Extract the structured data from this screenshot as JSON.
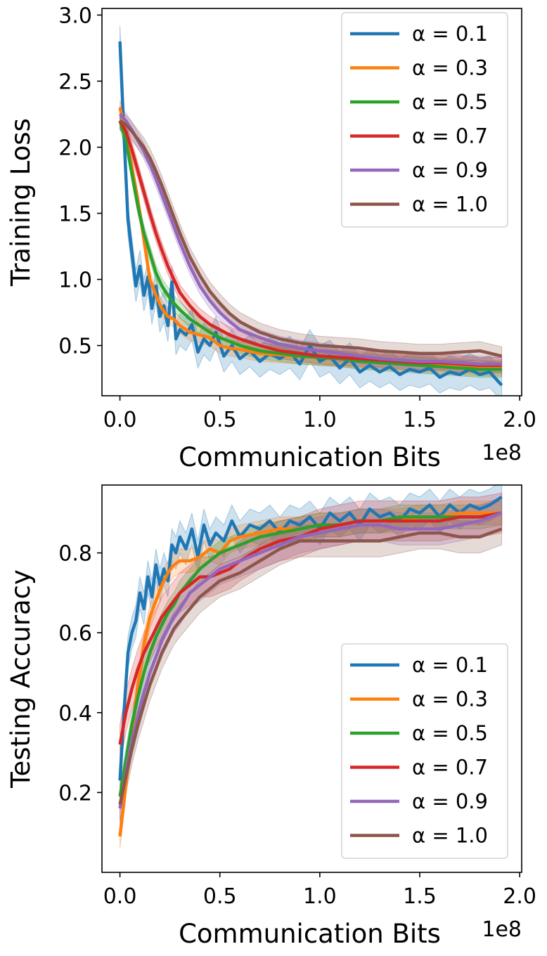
{
  "chart_data": [
    {
      "type": "line",
      "ylabel": "Training Loss",
      "xlabel": "Communication Bits",
      "x_offset_label": "1e8",
      "xlim": [
        -0.09,
        2.01
      ],
      "ylim": [
        0.12,
        3.05
      ],
      "xticks": [
        0.0,
        0.5,
        1.0,
        1.5,
        2.0
      ],
      "xtick_labels": [
        "0.0",
        "0.5",
        "1.0",
        "1.5",
        "2.0"
      ],
      "yticks": [
        0.5,
        1.0,
        1.5,
        2.0,
        2.5,
        3.0
      ],
      "ytick_labels": [
        "0.5",
        "1.0",
        "1.5",
        "2.0",
        "2.5",
        "3.0"
      ],
      "legend_position": "upper right",
      "series": [
        {
          "name": "α = 0.1",
          "color": "#1f77b4",
          "band": 0.12,
          "x": [
            0.0,
            0.02,
            0.04,
            0.06,
            0.08,
            0.1,
            0.12,
            0.14,
            0.16,
            0.18,
            0.2,
            0.22,
            0.24,
            0.26,
            0.28,
            0.3,
            0.33,
            0.36,
            0.39,
            0.42,
            0.45,
            0.48,
            0.52,
            0.56,
            0.6,
            0.65,
            0.7,
            0.75,
            0.8,
            0.85,
            0.9,
            0.95,
            1.0,
            1.05,
            1.1,
            1.15,
            1.2,
            1.25,
            1.3,
            1.35,
            1.4,
            1.45,
            1.5,
            1.55,
            1.6,
            1.65,
            1.7,
            1.75,
            1.8,
            1.85,
            1.91
          ],
          "y": [
            2.8,
            2.1,
            1.45,
            1.2,
            0.95,
            1.1,
            0.88,
            1.02,
            0.78,
            0.95,
            0.72,
            0.8,
            0.65,
            0.98,
            0.55,
            0.62,
            0.58,
            0.66,
            0.45,
            0.55,
            0.5,
            0.6,
            0.42,
            0.5,
            0.4,
            0.46,
            0.38,
            0.44,
            0.4,
            0.45,
            0.36,
            0.5,
            0.38,
            0.42,
            0.33,
            0.4,
            0.3,
            0.35,
            0.3,
            0.34,
            0.28,
            0.32,
            0.3,
            0.33,
            0.26,
            0.3,
            0.28,
            0.32,
            0.28,
            0.3,
            0.2
          ]
        },
        {
          "name": "α = 0.3",
          "color": "#ff7f0e",
          "band": 0.06,
          "x": [
            0.0,
            0.03,
            0.06,
            0.09,
            0.12,
            0.15,
            0.18,
            0.21,
            0.24,
            0.27,
            0.3,
            0.35,
            0.4,
            0.45,
            0.5,
            0.55,
            0.6,
            0.7,
            0.8,
            0.9,
            1.0,
            1.1,
            1.2,
            1.3,
            1.4,
            1.5,
            1.6,
            1.7,
            1.8,
            1.91
          ],
          "y": [
            2.3,
            2.1,
            1.85,
            1.6,
            1.3,
            1.0,
            0.88,
            0.78,
            0.72,
            0.7,
            0.65,
            0.6,
            0.58,
            0.56,
            0.5,
            0.48,
            0.47,
            0.44,
            0.43,
            0.42,
            0.41,
            0.4,
            0.39,
            0.38,
            0.37,
            0.36,
            0.35,
            0.34,
            0.33,
            0.33
          ]
        },
        {
          "name": "α = 0.5",
          "color": "#2ca02c",
          "band": 0.06,
          "x": [
            0.0,
            0.03,
            0.06,
            0.09,
            0.12,
            0.15,
            0.18,
            0.21,
            0.24,
            0.27,
            0.3,
            0.35,
            0.4,
            0.45,
            0.5,
            0.55,
            0.6,
            0.7,
            0.8,
            0.9,
            1.0,
            1.1,
            1.2,
            1.3,
            1.4,
            1.5,
            1.6,
            1.7,
            1.8,
            1.91
          ],
          "y": [
            2.2,
            2.05,
            1.8,
            1.55,
            1.35,
            1.2,
            1.05,
            0.95,
            0.88,
            0.82,
            0.77,
            0.7,
            0.65,
            0.6,
            0.56,
            0.53,
            0.5,
            0.46,
            0.44,
            0.42,
            0.41,
            0.4,
            0.38,
            0.37,
            0.36,
            0.35,
            0.34,
            0.33,
            0.32,
            0.32
          ]
        },
        {
          "name": "α = 0.7",
          "color": "#d62728",
          "band": 0.06,
          "x": [
            0.0,
            0.03,
            0.06,
            0.09,
            0.12,
            0.15,
            0.18,
            0.21,
            0.24,
            0.27,
            0.3,
            0.35,
            0.4,
            0.45,
            0.5,
            0.55,
            0.6,
            0.7,
            0.8,
            0.9,
            1.0,
            1.1,
            1.2,
            1.3,
            1.4,
            1.5,
            1.6,
            1.7,
            1.8,
            1.91
          ],
          "y": [
            2.2,
            2.12,
            1.98,
            1.82,
            1.66,
            1.5,
            1.35,
            1.22,
            1.1,
            1.0,
            0.9,
            0.8,
            0.72,
            0.66,
            0.62,
            0.58,
            0.55,
            0.5,
            0.46,
            0.44,
            0.42,
            0.41,
            0.4,
            0.39,
            0.38,
            0.37,
            0.37,
            0.36,
            0.35,
            0.35
          ]
        },
        {
          "name": "α = 0.9",
          "color": "#9467bd",
          "band": 0.06,
          "x": [
            0.0,
            0.03,
            0.06,
            0.09,
            0.12,
            0.15,
            0.18,
            0.21,
            0.24,
            0.27,
            0.3,
            0.35,
            0.4,
            0.45,
            0.5,
            0.55,
            0.6,
            0.7,
            0.8,
            0.9,
            1.0,
            1.1,
            1.2,
            1.3,
            1.4,
            1.5,
            1.6,
            1.7,
            1.8,
            1.91
          ],
          "y": [
            2.25,
            2.2,
            2.13,
            2.05,
            1.97,
            1.87,
            1.76,
            1.64,
            1.52,
            1.4,
            1.28,
            1.1,
            0.95,
            0.84,
            0.75,
            0.68,
            0.62,
            0.56,
            0.51,
            0.48,
            0.46,
            0.44,
            0.42,
            0.4,
            0.39,
            0.38,
            0.38,
            0.37,
            0.36,
            0.36
          ]
        },
        {
          "name": "α = 1.0",
          "color": "#8c564b",
          "band": 0.07,
          "x": [
            0.0,
            0.03,
            0.06,
            0.09,
            0.12,
            0.15,
            0.18,
            0.21,
            0.24,
            0.27,
            0.3,
            0.35,
            0.4,
            0.45,
            0.5,
            0.55,
            0.6,
            0.7,
            0.8,
            0.9,
            1.0,
            1.1,
            1.2,
            1.3,
            1.4,
            1.5,
            1.6,
            1.7,
            1.8,
            1.91
          ],
          "y": [
            2.2,
            2.17,
            2.12,
            2.06,
            2.0,
            1.92,
            1.82,
            1.71,
            1.59,
            1.47,
            1.35,
            1.17,
            1.03,
            0.91,
            0.82,
            0.74,
            0.68,
            0.6,
            0.55,
            0.52,
            0.5,
            0.49,
            0.48,
            0.46,
            0.45,
            0.44,
            0.44,
            0.45,
            0.46,
            0.42
          ]
        }
      ]
    },
    {
      "type": "line",
      "ylabel": "Testing Accuracy",
      "xlabel": "Communication Bits",
      "x_offset_label": "1e8",
      "xlim": [
        -0.09,
        2.01
      ],
      "ylim": [
        0.0,
        0.97
      ],
      "xticks": [
        0.0,
        0.5,
        1.0,
        1.5,
        2.0
      ],
      "xtick_labels": [
        "0.0",
        "0.5",
        "1.0",
        "1.5",
        "2.0"
      ],
      "yticks": [
        0.2,
        0.4,
        0.6,
        0.8
      ],
      "ytick_labels": [
        "0.2",
        "0.4",
        "0.6",
        "0.8"
      ],
      "legend_position": "lower right",
      "series": [
        {
          "name": "α = 0.1",
          "color": "#1f77b4",
          "band": 0.04,
          "x": [
            0.0,
            0.02,
            0.04,
            0.06,
            0.08,
            0.1,
            0.12,
            0.14,
            0.16,
            0.18,
            0.2,
            0.22,
            0.24,
            0.26,
            0.28,
            0.3,
            0.33,
            0.36,
            0.39,
            0.42,
            0.45,
            0.48,
            0.52,
            0.56,
            0.6,
            0.65,
            0.7,
            0.75,
            0.8,
            0.85,
            0.9,
            0.95,
            1.0,
            1.05,
            1.1,
            1.15,
            1.2,
            1.25,
            1.3,
            1.35,
            1.4,
            1.45,
            1.5,
            1.55,
            1.6,
            1.65,
            1.7,
            1.75,
            1.8,
            1.85,
            1.91
          ],
          "y": [
            0.23,
            0.4,
            0.55,
            0.6,
            0.63,
            0.7,
            0.66,
            0.74,
            0.69,
            0.77,
            0.72,
            0.76,
            0.73,
            0.82,
            0.8,
            0.84,
            0.81,
            0.86,
            0.79,
            0.87,
            0.82,
            0.85,
            0.83,
            0.88,
            0.84,
            0.87,
            0.86,
            0.88,
            0.85,
            0.88,
            0.87,
            0.89,
            0.86,
            0.9,
            0.88,
            0.9,
            0.87,
            0.91,
            0.89,
            0.9,
            0.88,
            0.91,
            0.9,
            0.92,
            0.89,
            0.92,
            0.9,
            0.92,
            0.91,
            0.92,
            0.94
          ]
        },
        {
          "name": "α = 0.3",
          "color": "#ff7f0e",
          "band": 0.03,
          "x": [
            0.0,
            0.03,
            0.06,
            0.09,
            0.12,
            0.15,
            0.18,
            0.21,
            0.24,
            0.27,
            0.3,
            0.35,
            0.4,
            0.45,
            0.5,
            0.55,
            0.6,
            0.7,
            0.8,
            0.9,
            1.0,
            1.1,
            1.2,
            1.3,
            1.4,
            1.5,
            1.6,
            1.7,
            1.8,
            1.91
          ],
          "y": [
            0.09,
            0.22,
            0.35,
            0.47,
            0.57,
            0.64,
            0.68,
            0.72,
            0.75,
            0.77,
            0.78,
            0.78,
            0.79,
            0.81,
            0.8,
            0.83,
            0.84,
            0.85,
            0.86,
            0.86,
            0.87,
            0.87,
            0.88,
            0.88,
            0.88,
            0.89,
            0.89,
            0.9,
            0.9,
            0.9
          ]
        },
        {
          "name": "α = 0.5",
          "color": "#2ca02c",
          "band": 0.03,
          "x": [
            0.0,
            0.03,
            0.06,
            0.09,
            0.12,
            0.15,
            0.18,
            0.21,
            0.24,
            0.27,
            0.3,
            0.35,
            0.4,
            0.45,
            0.5,
            0.55,
            0.6,
            0.7,
            0.8,
            0.9,
            1.0,
            1.1,
            1.2,
            1.3,
            1.4,
            1.5,
            1.6,
            1.7,
            1.8,
            1.91
          ],
          "y": [
            0.19,
            0.28,
            0.37,
            0.44,
            0.5,
            0.55,
            0.59,
            0.62,
            0.65,
            0.67,
            0.7,
            0.73,
            0.76,
            0.78,
            0.8,
            0.81,
            0.82,
            0.84,
            0.85,
            0.86,
            0.87,
            0.87,
            0.88,
            0.88,
            0.89,
            0.89,
            0.89,
            0.89,
            0.89,
            0.9
          ]
        },
        {
          "name": "α = 0.7",
          "color": "#d62728",
          "band": 0.05,
          "x": [
            0.0,
            0.03,
            0.06,
            0.09,
            0.12,
            0.15,
            0.18,
            0.21,
            0.24,
            0.27,
            0.3,
            0.35,
            0.4,
            0.45,
            0.5,
            0.55,
            0.6,
            0.7,
            0.8,
            0.9,
            1.0,
            1.1,
            1.2,
            1.3,
            1.4,
            1.5,
            1.6,
            1.7,
            1.8,
            1.91
          ],
          "y": [
            0.32,
            0.4,
            0.46,
            0.51,
            0.55,
            0.58,
            0.61,
            0.64,
            0.66,
            0.68,
            0.7,
            0.72,
            0.74,
            0.74,
            0.75,
            0.76,
            0.78,
            0.81,
            0.83,
            0.84,
            0.86,
            0.87,
            0.88,
            0.88,
            0.88,
            0.88,
            0.88,
            0.89,
            0.89,
            0.9
          ]
        },
        {
          "name": "α = 0.9",
          "color": "#9467bd",
          "band": 0.04,
          "x": [
            0.0,
            0.03,
            0.06,
            0.09,
            0.12,
            0.15,
            0.18,
            0.21,
            0.24,
            0.27,
            0.3,
            0.35,
            0.4,
            0.45,
            0.5,
            0.55,
            0.6,
            0.7,
            0.8,
            0.9,
            1.0,
            1.1,
            1.2,
            1.3,
            1.4,
            1.5,
            1.6,
            1.7,
            1.8,
            1.91
          ],
          "y": [
            0.16,
            0.25,
            0.33,
            0.39,
            0.45,
            0.5,
            0.54,
            0.58,
            0.61,
            0.64,
            0.66,
            0.7,
            0.72,
            0.74,
            0.76,
            0.77,
            0.78,
            0.8,
            0.82,
            0.84,
            0.85,
            0.86,
            0.87,
            0.87,
            0.86,
            0.86,
            0.86,
            0.87,
            0.88,
            0.9
          ]
        },
        {
          "name": "α = 1.0",
          "color": "#8c564b",
          "band": 0.04,
          "x": [
            0.0,
            0.03,
            0.06,
            0.09,
            0.12,
            0.15,
            0.18,
            0.21,
            0.24,
            0.27,
            0.3,
            0.35,
            0.4,
            0.45,
            0.5,
            0.55,
            0.6,
            0.7,
            0.8,
            0.9,
            1.0,
            1.1,
            1.2,
            1.3,
            1.4,
            1.5,
            1.6,
            1.7,
            1.8,
            1.91
          ],
          "y": [
            0.17,
            0.24,
            0.31,
            0.37,
            0.42,
            0.47,
            0.51,
            0.55,
            0.58,
            0.61,
            0.63,
            0.66,
            0.69,
            0.71,
            0.73,
            0.74,
            0.75,
            0.78,
            0.81,
            0.83,
            0.83,
            0.83,
            0.83,
            0.83,
            0.84,
            0.85,
            0.85,
            0.84,
            0.84,
            0.86
          ]
        }
      ]
    }
  ]
}
